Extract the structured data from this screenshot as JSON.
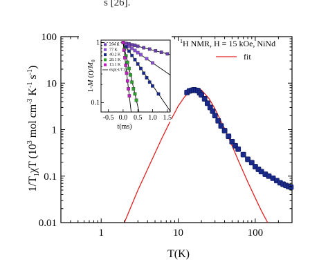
{
  "page": {
    "top_fragment": "s [26]."
  },
  "chart_data": [
    {
      "type": "scatter",
      "title": "",
      "xlabel": "T(K)",
      "ylabel": "1/T1χT (10³ mol cm⁻³ K⁻¹ s⁻¹)",
      "ylabel_parts": {
        "a": "1/T",
        "sub1": "1",
        "b": "χT (10",
        "sup3": "3",
        "c": " mol cm",
        "supm3": "-3",
        "d": " K",
        "supm1a": "-1",
        "e": " s",
        "supm1b": "-1",
        "f": ")"
      },
      "xscale": "log",
      "yscale": "log",
      "xlim": [
        0.3,
        300
      ],
      "ylim": [
        0.01,
        100
      ],
      "xticks": [
        {
          "value": 1,
          "label": "1"
        },
        {
          "value": 10,
          "label": "10"
        },
        {
          "value": 100,
          "label": "100"
        }
      ],
      "yticks": [
        {
          "value": 0.01,
          "label": "0.01"
        },
        {
          "value": 0.1,
          "label": "0.1"
        },
        {
          "value": 1,
          "label": "1"
        },
        {
          "value": 10,
          "label": "10"
        },
        {
          "value": 100,
          "label": "100"
        }
      ],
      "legend_position": "top-right",
      "legend_entries": [
        {
          "label_sup": "1",
          "label": "H NMR, H = 15 kOe, NiNd",
          "marker": "square",
          "color": "#1a2a8a"
        },
        {
          "label": "fit",
          "marker": "line",
          "color": "#e02020"
        }
      ],
      "series": [
        {
          "name": "¹H NMR, H = 15 kOe, NiNd",
          "color": "#1a2a8a",
          "x": [
            13,
            14,
            15,
            16,
            17,
            18,
            19,
            20,
            22,
            24,
            26,
            28,
            30,
            33,
            36,
            40,
            45,
            50,
            55,
            60,
            70,
            80,
            90,
            100,
            110,
            120,
            135,
            150,
            170,
            190,
            210,
            230,
            250,
            270,
            290
          ],
          "y": [
            6.3,
            6.8,
            7.0,
            7.2,
            7.0,
            6.9,
            6.2,
            5.6,
            4.6,
            3.7,
            3.0,
            2.5,
            2.0,
            1.55,
            1.2,
            0.95,
            0.72,
            0.55,
            0.45,
            0.38,
            0.29,
            0.23,
            0.195,
            0.16,
            0.14,
            0.125,
            0.11,
            0.1,
            0.09,
            0.08,
            0.072,
            0.067,
            0.063,
            0.06,
            0.058
          ]
        },
        {
          "name": "fit",
          "color": "#e02020",
          "x": [
            2,
            3,
            4,
            6,
            8,
            10,
            12,
            14,
            16,
            18,
            20,
            25,
            30,
            40,
            50,
            60,
            80,
            100,
            120,
            145
          ],
          "y": [
            0.01,
            0.05,
            0.14,
            0.6,
            1.6,
            3.2,
            5.0,
            6.6,
            7.5,
            7.6,
            7.1,
            4.7,
            2.8,
            1.05,
            0.45,
            0.22,
            0.075,
            0.034,
            0.018,
            0.01
          ]
        }
      ]
    },
    {
      "type": "scatter",
      "title": "",
      "xlabel": "t(ms)",
      "ylabel": "1-M(t)/M0",
      "ylabel_parts": {
        "a": "1-",
        "b": "M",
        "c": " (",
        "d": "t",
        "e": ")/",
        "f": "M",
        "sub0": "0"
      },
      "yscale": "log",
      "xlim": [
        -0.75,
        1.6
      ],
      "ylim": [
        0.07,
        1.1
      ],
      "xticks": [
        {
          "value": -0.5,
          "label": "-0.5"
        },
        {
          "value": 0.0,
          "label": "0.0"
        },
        {
          "value": 0.5,
          "label": "0.5"
        },
        {
          "value": 1.0,
          "label": "1.0"
        },
        {
          "value": 1.5,
          "label": "1.5"
        }
      ],
      "yticks": [
        {
          "value": 0.1,
          "label": "0.1"
        },
        {
          "value": 1,
          "label": "1"
        }
      ],
      "legend_position": "top-left",
      "legend_entries": [
        {
          "label": "294 K",
          "color": "#6a3fb0"
        },
        {
          "label": "77 K",
          "color": "#8a4fd0"
        },
        {
          "label": "40.2 K",
          "color": "#1a2a8a"
        },
        {
          "label": "28.1 K",
          "color": "#2aa02a"
        },
        {
          "label": "13.1 K",
          "color": "#c020c0"
        },
        {
          "label": "exp(-t/T1)",
          "color": "#000000"
        }
      ],
      "series": [
        {
          "name": "294 K",
          "color": "#6a3fb0",
          "x": [
            0.0,
            0.1,
            0.2,
            0.3,
            0.4,
            0.5,
            0.7,
            0.9,
            1.1,
            1.3,
            1.5
          ],
          "y": [
            1.0,
            0.97,
            0.95,
            0.92,
            0.9,
            0.87,
            0.82,
            0.78,
            0.73,
            0.69,
            0.65
          ]
        },
        {
          "name": "77 K",
          "color": "#8a4fd0",
          "x": [
            0.0,
            0.1,
            0.2,
            0.3,
            0.4,
            0.5,
            0.6,
            0.8,
            1.0
          ],
          "y": [
            1.0,
            0.92,
            0.86,
            0.8,
            0.74,
            0.68,
            0.63,
            0.54,
            0.46
          ]
        },
        {
          "name": "40.2 K",
          "color": "#1a2a8a",
          "x": [
            0.0,
            0.1,
            0.2,
            0.3,
            0.4,
            0.5,
            0.6,
            0.7,
            0.8,
            0.9,
            1.0,
            1.2
          ],
          "y": [
            1.0,
            0.85,
            0.72,
            0.61,
            0.52,
            0.44,
            0.37,
            0.31,
            0.26,
            0.22,
            0.19,
            0.14
          ]
        },
        {
          "name": "28.1 K",
          "color": "#2aa02a",
          "x": [
            0.0,
            0.05,
            0.1,
            0.15,
            0.2,
            0.25,
            0.3,
            0.35,
            0.4,
            0.45
          ],
          "y": [
            1.0,
            0.78,
            0.6,
            0.47,
            0.37,
            0.29,
            0.22,
            0.17,
            0.14,
            0.11
          ]
        },
        {
          "name": "13.1 K",
          "color": "#c020c0",
          "x": [
            0.0,
            0.03,
            0.06,
            0.09,
            0.12,
            0.15,
            0.18,
            0.21
          ],
          "y": [
            1.0,
            0.75,
            0.56,
            0.42,
            0.31,
            0.23,
            0.17,
            0.13
          ]
        }
      ]
    }
  ]
}
